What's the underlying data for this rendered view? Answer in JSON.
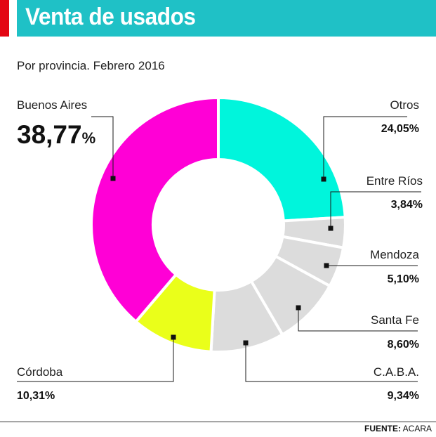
{
  "header": {
    "title": "Venta de usados",
    "subtitle": "Por provincia. Febrero 2016"
  },
  "footer": {
    "source_label": "FUENTE:",
    "source_value": "ACARA"
  },
  "chart_data": {
    "type": "pie",
    "variant": "donut",
    "title": "Venta de usados",
    "subtitle": "Por provincia. Febrero 2016",
    "unit": "%",
    "slices": [
      {
        "name": "Otros",
        "value": 24.05,
        "label": "24,05%",
        "color": "#00f5dc"
      },
      {
        "name": "Entre Ríos",
        "value": 3.84,
        "label": "3,84%",
        "color": "#dcdcdc"
      },
      {
        "name": "Mendoza",
        "value": 5.1,
        "label": "5,10%",
        "color": "#dcdcdc"
      },
      {
        "name": "Santa Fe",
        "value": 8.6,
        "label": "8,60%",
        "color": "#dcdcdc"
      },
      {
        "name": "C.A.B.A.",
        "value": 9.34,
        "label": "9,34%",
        "color": "#dcdcdc"
      },
      {
        "name": "Córdoba",
        "value": 10.31,
        "label": "10,31%",
        "color": "#eaff1a"
      },
      {
        "name": "Buenos Aires",
        "value": 38.77,
        "label": "38,77",
        "label_suffix": "%",
        "color": "#ff00d6"
      }
    ],
    "legend": "callout-labels"
  }
}
